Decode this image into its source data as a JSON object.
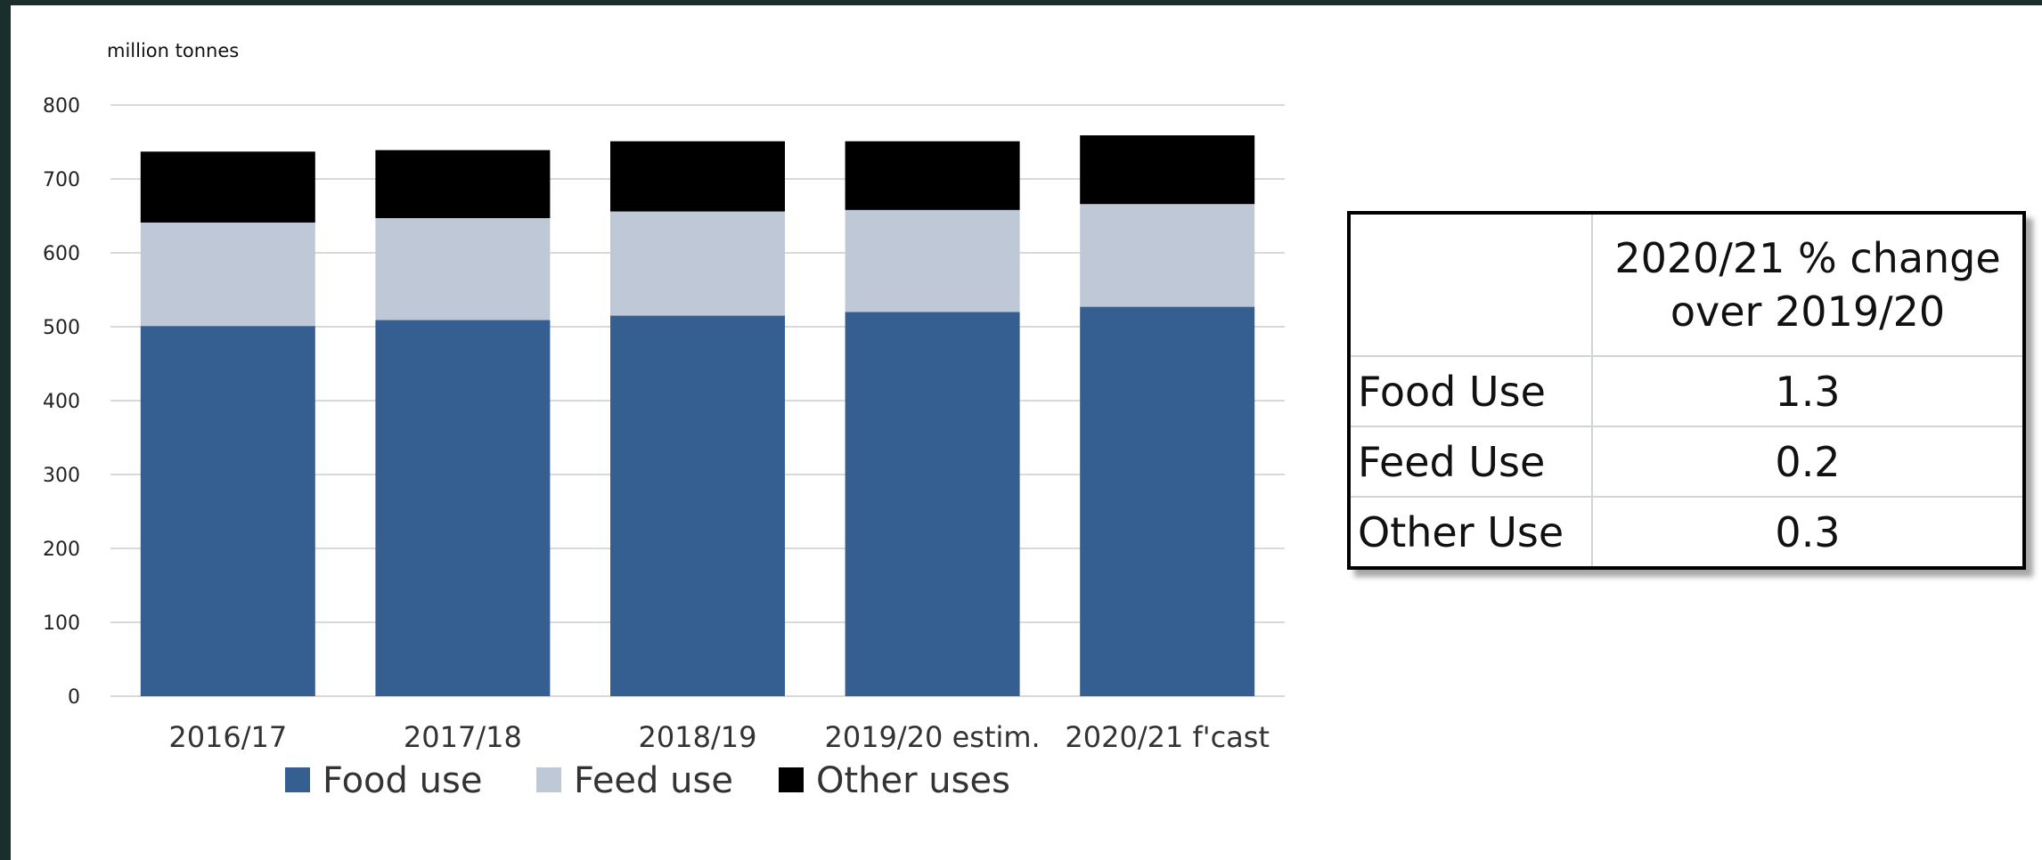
{
  "chart_data": {
    "type": "bar",
    "stacked": true,
    "unit_label": "million tonnes",
    "categories": [
      "2016/17",
      "2017/18",
      "2018/19",
      "2019/20 estim.",
      "2020/21 f'cast"
    ],
    "series": [
      {
        "name": "Food use",
        "values": [
          501,
          509,
          515,
          520,
          527
        ],
        "color": "#365f91"
      },
      {
        "name": "Feed use",
        "values": [
          140,
          138,
          141,
          138,
          139
        ],
        "color": "#bfc8d6"
      },
      {
        "name": "Other uses",
        "values": [
          96,
          92,
          95,
          93,
          93
        ],
        "color": "#000000"
      }
    ],
    "ylim": [
      0,
      800
    ],
    "yticks": [
      0,
      100,
      200,
      300,
      400,
      500,
      600,
      700,
      800
    ],
    "grid": true,
    "legend_position": "bottom"
  },
  "table": {
    "header": "2020/21 % change over 2019/20",
    "rows": [
      {
        "label": "Food Use",
        "value": "1.3"
      },
      {
        "label": "Feed Use",
        "value": "0.2"
      },
      {
        "label": "Other Use",
        "value": "0.3"
      }
    ]
  }
}
